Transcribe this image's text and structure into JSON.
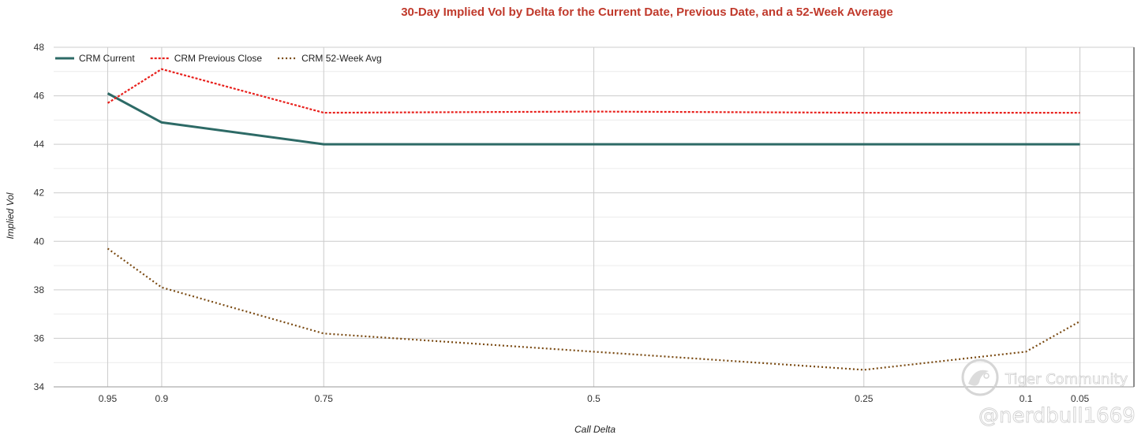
{
  "colors": {
    "title": "#c0392b",
    "grid_major": "#cccccc",
    "grid_minor": "#ececec",
    "axis": "#999999"
  },
  "watermark": {
    "brand": "Tiger Community",
    "handle": "@nerdbull1669",
    "icon": "tiger-logo-icon"
  },
  "chart_data": {
    "type": "line",
    "title": "30-Day Implied Vol by Delta for the Current Date, Previous Date, and a 52-Week Average",
    "xlabel": "Call Delta",
    "ylabel": "Implied Vol",
    "x": [
      0.95,
      0.9,
      0.75,
      0.5,
      0.25,
      0.1,
      0.05
    ],
    "x_tick_labels": [
      "0.95",
      "0.9",
      "0.75",
      "0.5",
      "0.25",
      "0.1",
      "0.05"
    ],
    "xlim": [
      1.0,
      0.0
    ],
    "x_reversed": true,
    "ylim": [
      34,
      48
    ],
    "y_ticks": [
      34,
      36,
      38,
      40,
      42,
      44,
      46,
      48
    ],
    "grid": true,
    "legend_position": "top-left",
    "series": [
      {
        "name": "CRM Current",
        "color": "#2d6a66",
        "style": "solid",
        "values": [
          46.1,
          44.9,
          44.0,
          44.0,
          44.0,
          44.0,
          44.0
        ]
      },
      {
        "name": "CRM Previous Close",
        "color": "#e8201c",
        "style": "dashed",
        "values": [
          45.7,
          47.1,
          45.3,
          45.35,
          45.3,
          45.3,
          45.3
        ]
      },
      {
        "name": "CRM 52-Week Avg",
        "color": "#7a4a12",
        "style": "dotted",
        "values": [
          39.7,
          38.1,
          36.2,
          35.45,
          34.7,
          35.45,
          36.7
        ]
      }
    ]
  }
}
